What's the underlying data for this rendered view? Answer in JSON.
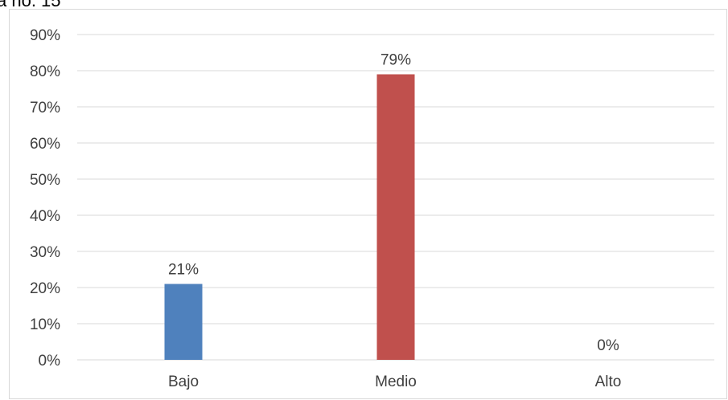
{
  "caption": "a no. 15",
  "chart_data": {
    "type": "bar",
    "categories": [
      "Bajo",
      "Medio",
      "Alto"
    ],
    "values": [
      21,
      79,
      0
    ],
    "value_labels": [
      "21%",
      "79%",
      "0%"
    ],
    "colors": [
      "#4f81bd",
      "#c0504d",
      "#9bbb59"
    ],
    "ylim": [
      0,
      90
    ],
    "yticks": [
      0,
      10,
      20,
      30,
      40,
      50,
      60,
      70,
      80,
      90
    ],
    "ytick_labels": [
      "0%",
      "10%",
      "20%",
      "30%",
      "40%",
      "50%",
      "60%",
      "70%",
      "80%",
      "90%"
    ],
    "grid": true,
    "gridline_color": "#d9d9d9",
    "label_color": "#404040"
  }
}
